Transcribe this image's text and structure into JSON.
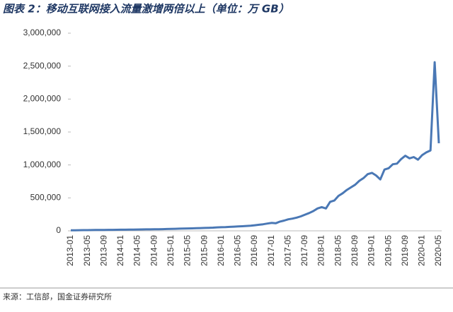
{
  "chart_data": {
    "type": "line",
    "title": "图表 2：移动互联网接入流量激增两倍以上（单位：万 GB）",
    "source": "来源：工信部，国金证券研究所",
    "categories": [
      "2013-01",
      null,
      null,
      null,
      "2013-05",
      null,
      null,
      null,
      "2013-09",
      null,
      null,
      null,
      "2014-01",
      null,
      null,
      null,
      "2014-05",
      null,
      null,
      null,
      "2014-09",
      null,
      null,
      null,
      "2015-01",
      null,
      null,
      null,
      "2015-05",
      null,
      null,
      null,
      "2015-09",
      null,
      null,
      null,
      "2016-01",
      null,
      null,
      null,
      "2016-05",
      null,
      null,
      null,
      "2016-09",
      null,
      null,
      null,
      "2017-01",
      null,
      null,
      null,
      "2017-05",
      null,
      null,
      null,
      "2017-09",
      null,
      null,
      null,
      "2018-01",
      null,
      null,
      null,
      "2018-05",
      null,
      null,
      null,
      "2018-09",
      null,
      null,
      null,
      "2019-01",
      null,
      null,
      null,
      "2019-05",
      null,
      null,
      null,
      "2019-09",
      null,
      null,
      null,
      "2020-01",
      null,
      null,
      null,
      "2020-05"
    ],
    "values": [
      8000,
      9000,
      10000,
      11000,
      11000,
      12000,
      13000,
      13000,
      14000,
      15000,
      15000,
      16000,
      17000,
      17000,
      18000,
      19000,
      20000,
      21000,
      22000,
      23000,
      24000,
      25000,
      26000,
      28000,
      30000,
      31000,
      33000,
      34000,
      36000,
      38000,
      40000,
      42000,
      44000,
      46000,
      48000,
      52000,
      55000,
      56000,
      60000,
      63000,
      66000,
      70000,
      74000,
      78000,
      85000,
      92000,
      100000,
      110000,
      120000,
      115000,
      140000,
      155000,
      175000,
      185000,
      200000,
      220000,
      245000,
      270000,
      300000,
      340000,
      360000,
      340000,
      440000,
      460000,
      530000,
      570000,
      620000,
      660000,
      700000,
      760000,
      800000,
      860000,
      880000,
      840000,
      780000,
      930000,
      950000,
      1010000,
      1020000,
      1090000,
      1140000,
      1100000,
      1120000,
      1080000,
      1150000,
      1190000,
      1220000,
      2560000,
      1330000
    ],
    "color": "#4a78b5",
    "ylim": [
      0,
      3000000
    ],
    "yticks": [
      0,
      {
        "value": 500000,
        "label": "500,000"
      },
      {
        "value": 1000000,
        "label": "1,000,000"
      },
      {
        "value": 1500000,
        "label": "1,500,000"
      },
      {
        "value": 2000000,
        "label": "2,000,000"
      },
      {
        "value": 2500000,
        "label": "2,500,000"
      },
      {
        "value": 3000000,
        "label": "3,000,000"
      }
    ],
    "grid": false
  }
}
